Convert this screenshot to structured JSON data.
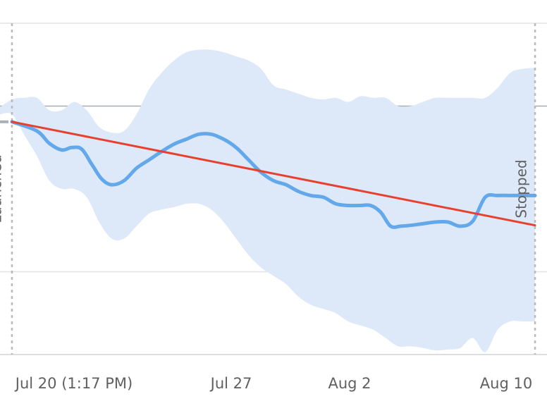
{
  "chart_data": {
    "type": "line",
    "x_ticks": [
      "Jul 20 (1:17 PM)",
      "Jul 27",
      "Aug 2",
      "Aug 10"
    ],
    "x_domain": [
      -0.48,
      21.48
    ],
    "y_domain": [
      0,
      4
    ],
    "y_gridlines": [
      0,
      1,
      3,
      4
    ],
    "y_baseline": 3,
    "events": [
      {
        "label": "Launched",
        "x": 0.0
      },
      {
        "label": "Stopped",
        "x": 21.0
      }
    ],
    "pre_launch_value": 2.81,
    "series": [
      {
        "key": "observed",
        "color": "#62a8ea",
        "x": [
          0.0,
          1.0,
          1.5,
          2.0,
          2.4,
          2.8,
          3.2,
          3.6,
          4.0,
          4.5,
          5.0,
          5.5,
          6.0,
          6.5,
          7.0,
          7.5,
          8.0,
          8.5,
          9.0,
          9.5,
          10.0,
          10.5,
          11.0,
          11.5,
          12.0,
          12.5,
          13.0,
          13.5,
          14.0,
          14.4,
          14.8,
          15.2,
          15.6,
          16.0,
          16.5,
          17.0,
          17.5,
          18.0,
          18.5,
          19.0,
          19.5,
          20.0,
          20.5,
          21.0
        ],
        "y": [
          2.81,
          2.7,
          2.55,
          2.47,
          2.5,
          2.48,
          2.3,
          2.12,
          2.05,
          2.1,
          2.25,
          2.35,
          2.45,
          2.54,
          2.6,
          2.66,
          2.66,
          2.6,
          2.5,
          2.35,
          2.2,
          2.1,
          2.05,
          1.97,
          1.92,
          1.9,
          1.82,
          1.8,
          1.8,
          1.8,
          1.72,
          1.55,
          1.55,
          1.56,
          1.58,
          1.6,
          1.6,
          1.55,
          1.61,
          1.9,
          1.92,
          1.92,
          1.92,
          1.92
        ]
      },
      {
        "key": "trend",
        "color": "#e8402f",
        "x": [
          0.0,
          21.0
        ],
        "y": [
          2.81,
          1.56
        ]
      }
    ],
    "confidence_band": {
      "color": "#dde9f8",
      "x": [
        -0.5,
        0.0,
        0.5,
        1.0,
        1.5,
        2.0,
        2.5,
        3.0,
        3.5,
        4.0,
        4.5,
        5.0,
        5.5,
        6.0,
        6.5,
        7.0,
        7.5,
        8.0,
        8.5,
        9.0,
        9.5,
        10.0,
        10.5,
        11.0,
        11.5,
        12.0,
        12.5,
        13.0,
        13.5,
        14.0,
        14.5,
        15.0,
        15.5,
        16.0,
        16.5,
        17.0,
        17.5,
        18.0,
        18.5,
        19.0,
        19.5,
        20.0,
        20.5,
        21.0
      ],
      "upper": [
        2.98,
        3.08,
        3.1,
        3.1,
        2.95,
        2.95,
        3.05,
        2.95,
        2.75,
        2.68,
        2.7,
        2.9,
        3.2,
        3.4,
        3.55,
        3.65,
        3.68,
        3.68,
        3.65,
        3.6,
        3.55,
        3.45,
        3.25,
        3.2,
        3.15,
        3.1,
        3.08,
        3.1,
        3.05,
        3.12,
        3.1,
        3.1,
        3.0,
        3.0,
        3.05,
        3.1,
        3.1,
        3.1,
        3.1,
        3.1,
        3.22,
        3.4,
        3.45,
        3.46
      ]
    },
    "confidence_band_lower": [
      2.9,
      2.9,
      2.65,
      2.4,
      2.1,
      2.0,
      2.0,
      1.9,
      1.6,
      1.4,
      1.4,
      1.55,
      1.7,
      1.75,
      1.78,
      1.82,
      1.82,
      1.75,
      1.6,
      1.4,
      1.2,
      1.05,
      0.95,
      0.85,
      0.7,
      0.6,
      0.55,
      0.5,
      0.4,
      0.35,
      0.3,
      0.2,
      0.1,
      0.1,
      0.08,
      0.05,
      0.06,
      0.08,
      0.2,
      0.03,
      0.3,
      0.4,
      0.4,
      0.4
    ]
  }
}
